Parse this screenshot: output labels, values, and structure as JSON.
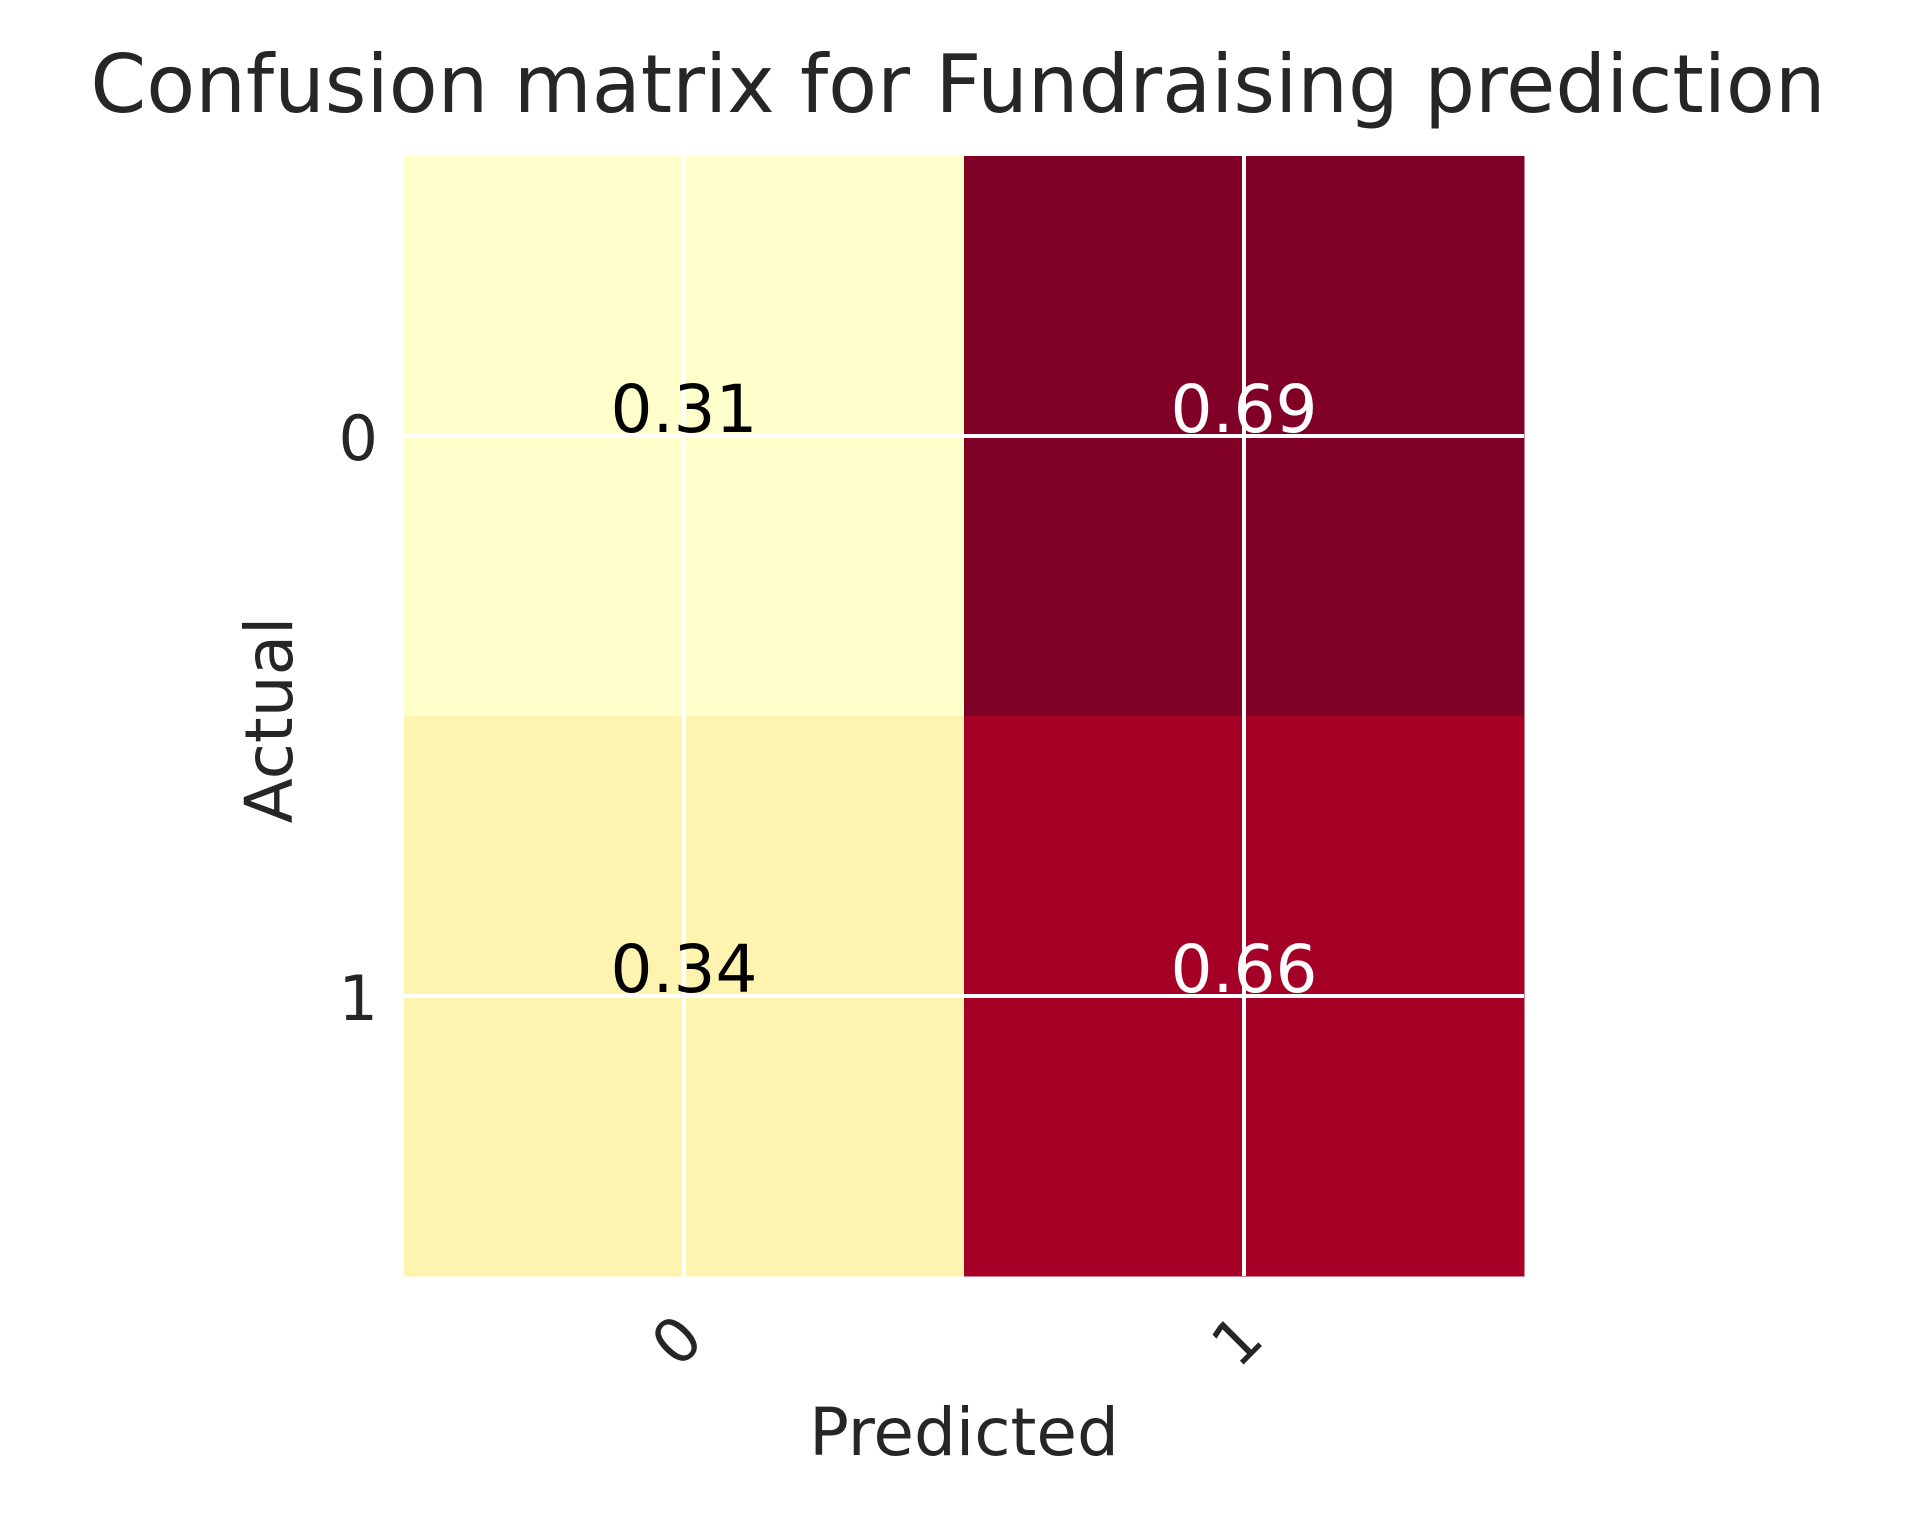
{
  "chart_data": {
    "type": "heatmap",
    "title": "Confusion matrix for Fundraising prediction",
    "xlabel": "Predicted",
    "ylabel": "Actual",
    "x_categories": [
      "0",
      "1"
    ],
    "y_categories": [
      "0",
      "1"
    ],
    "values": [
      [
        0.31,
        0.69
      ],
      [
        0.34,
        0.66
      ]
    ],
    "value_labels": [
      [
        "0.31",
        "0.69"
      ],
      [
        "0.34",
        "0.66"
      ]
    ],
    "colormap": "YlOrRd",
    "vmin": 0.31,
    "vmax": 0.69,
    "cell_colors": [
      [
        "#ffffcc",
        "#800026"
      ],
      [
        "#fff3b0",
        "#a50026"
      ]
    ],
    "label_colors": [
      [
        "#000000",
        "#ffffff"
      ],
      [
        "#000000",
        "#ffffff"
      ]
    ],
    "x_tick_rotation": -45,
    "grid": true,
    "grid_color": "#ffffff",
    "colorbar": false
  }
}
